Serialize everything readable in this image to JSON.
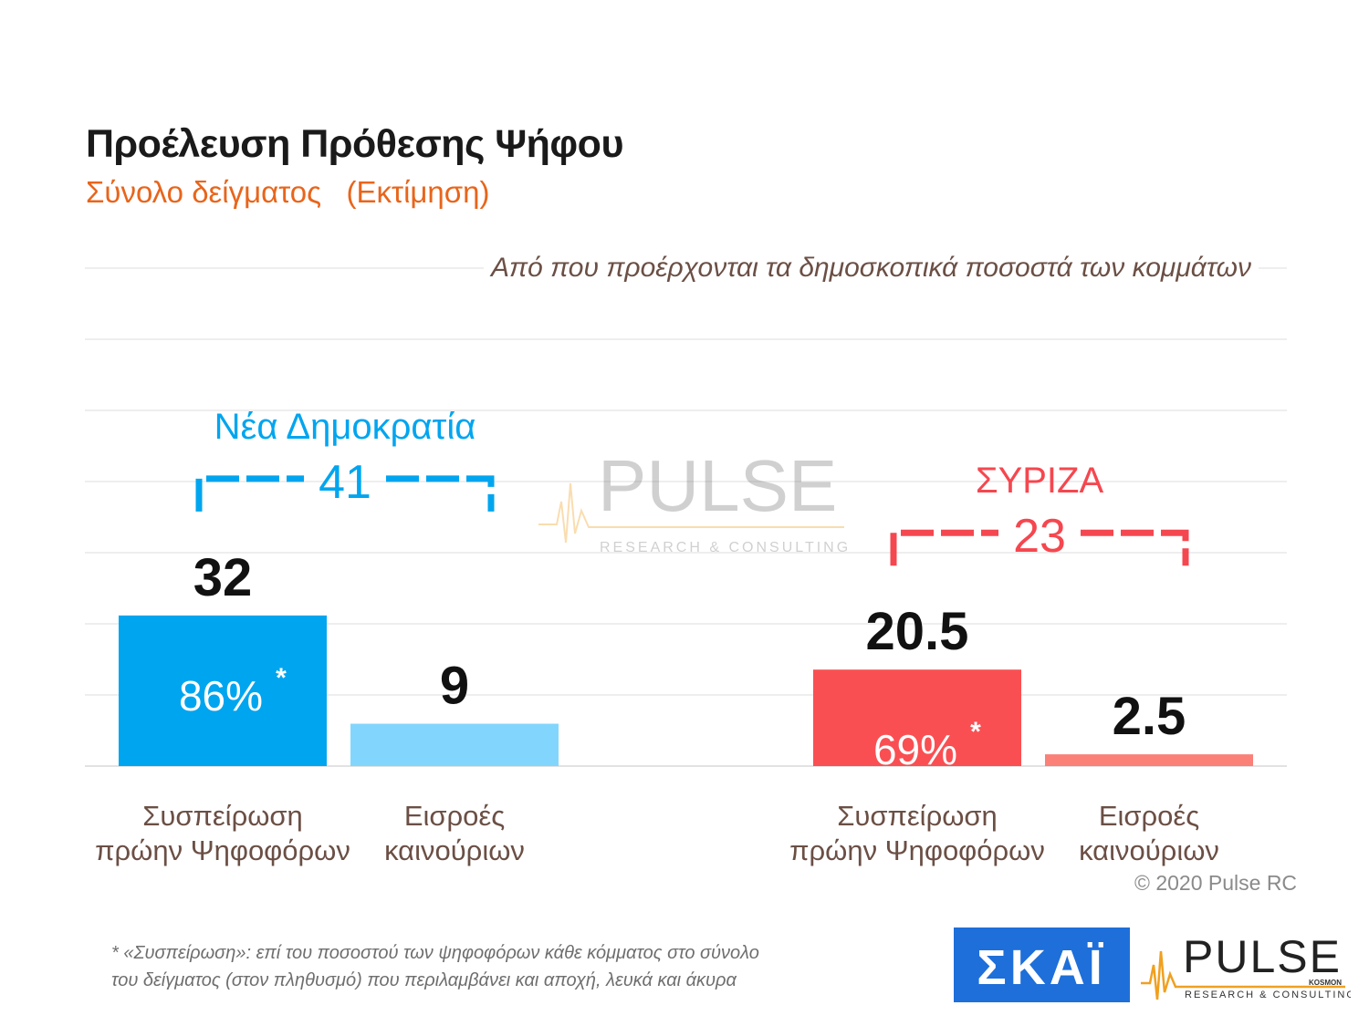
{
  "header": {
    "title": "Προέλευση Πρόθεσης Ψήφου",
    "subtitle": "Σύνολο δείγματος   (Εκτίμηση)"
  },
  "caption": "Από που προέρχονται τα δημοσκοπικά ποσοστά των κομμάτων",
  "chart_data": {
    "type": "bar",
    "groups": [
      {
        "name": "Νέα Δημοκρατία",
        "total": "41",
        "color": "#00a5ef",
        "bars": [
          {
            "category": "Συσπείρωση πρώην Ψηφοφόρων",
            "value": 32,
            "label": "32",
            "inner_label": "86%",
            "inner_mark": "*",
            "color": "#00a5ef"
          },
          {
            "category": "Εισροές καινούριων",
            "value": 9,
            "label": "9",
            "color": "#82d6fd"
          }
        ]
      },
      {
        "name": "ΣΥΡΙΖΑ",
        "total": "23",
        "color": "#f5474f",
        "bars": [
          {
            "category": "Συσπείρωση πρώην Ψηφοφόρων",
            "value": 20.5,
            "label": "20.5",
            "inner_label": "69%",
            "inner_mark": "*",
            "color": "#fa4f52"
          },
          {
            "category": "Εισροές καινούριων",
            "value": 2.5,
            "label": "2.5",
            "color": "#fa8078"
          }
        ]
      }
    ],
    "category_lines": [
      [
        "Συσπείρωση",
        "πρώην Ψηφοφόρων"
      ],
      [
        "Εισροές",
        "καινούριων"
      ],
      [
        "Συσπείρωση",
        "πρώην Ψηφοφόρων"
      ],
      [
        "Εισροές",
        "καινούριων"
      ]
    ],
    "ylim": [
      0,
      60
    ],
    "grid": true,
    "legend": "none"
  },
  "footnote": {
    "line1": "*  «Συσπείρωση»: επί του ποσοστού των ψηφοφόρων κάθε κόμματος στο σύνολο",
    "line2": "του δείγματος (στον πληθυσμό) που περιλαμβάνει και αποχή, λευκά και άκυρα"
  },
  "copyright": "© 2020 Pulse RC",
  "logos": {
    "skai_text": "ΣΚΑΪ",
    "pulse_text": "PULSE",
    "pulse_small": "KOSMON",
    "pulse_sub": "RESEARCH & CONSULTING",
    "skai_color": "#1e6fd9",
    "pulse_orange": "#f0a020"
  }
}
